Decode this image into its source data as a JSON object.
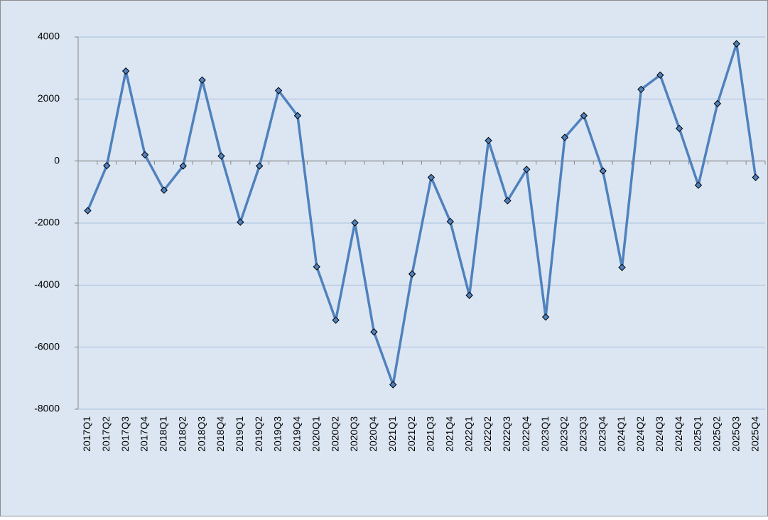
{
  "chart_data": {
    "type": "line",
    "categories": [
      "2017Q1",
      "2017Q2",
      "2017Q3",
      "2017Q4",
      "2018Q1",
      "2018Q2",
      "2018Q3",
      "2018Q4",
      "2019Q1",
      "2019Q2",
      "2019Q3",
      "2019Q4",
      "2020Q1",
      "2020Q2",
      "2020Q3",
      "2020Q4",
      "2021Q1",
      "2021Q2",
      "2021Q3",
      "2021Q4",
      "2022Q1",
      "2022Q2",
      "2022Q3",
      "2022Q4",
      "2023Q1",
      "2023Q2",
      "2023Q3",
      "2023Q4",
      "2024Q1",
      "2024Q2",
      "2024Q3",
      "2024Q4",
      "2025Q1",
      "2025Q2",
      "2025Q3",
      "2025Q4"
    ],
    "values": [
      -1600,
      -150,
      2900,
      200,
      -940,
      -160,
      2610,
      160,
      -1970,
      -160,
      2270,
      1460,
      -3410,
      -5130,
      -1990,
      -5510,
      -7210,
      -3640,
      -530,
      -1950,
      -4330,
      660,
      -1280,
      -270,
      -5030,
      760,
      1460,
      -320,
      -3430,
      2310,
      2770,
      1050,
      -780,
      1850,
      3780,
      -530
    ],
    "color": "#4f81bd",
    "ylim": [
      -8000,
      4000
    ],
    "yticks": [
      -8000,
      -6000,
      -4000,
      -2000,
      0,
      2000,
      4000
    ],
    "grid": true
  }
}
